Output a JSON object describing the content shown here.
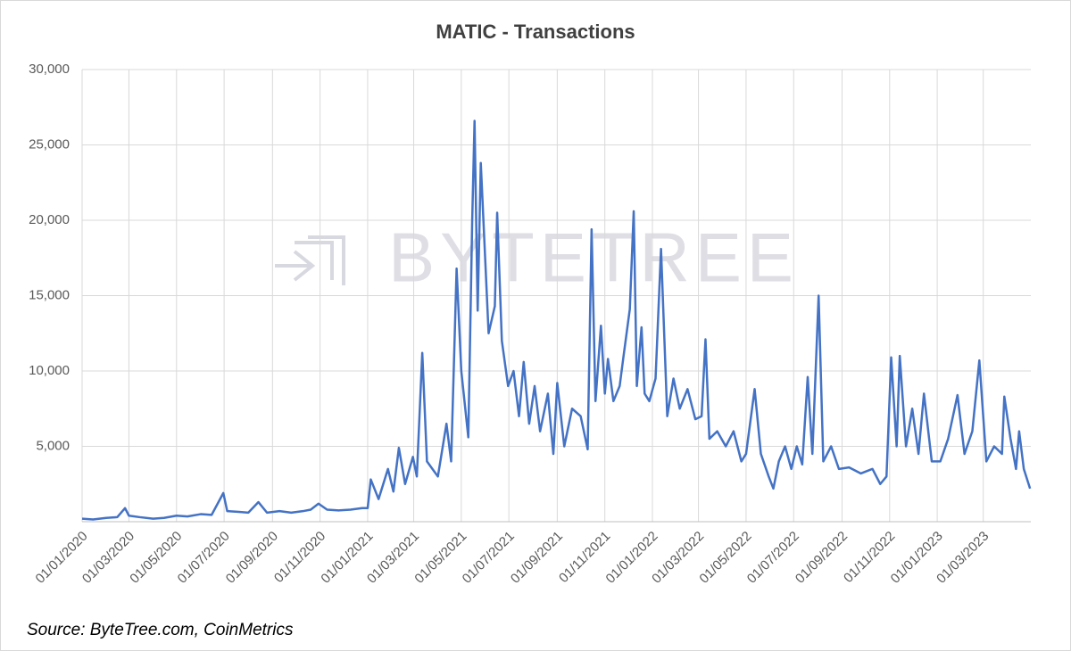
{
  "chart_data": {
    "type": "line",
    "title": "MATIC - Transactions",
    "watermark": "BYTETREE",
    "source": "Source: ByteTree.com, CoinMetrics",
    "x": [
      "01/01/2020",
      "15/01/2020",
      "01/02/2020",
      "15/02/2020",
      "25/02/2020",
      "01/03/2020",
      "15/03/2020",
      "01/04/2020",
      "15/04/2020",
      "01/05/2020",
      "15/05/2020",
      "01/06/2020",
      "15/06/2020",
      "30/06/2020",
      "05/07/2020",
      "20/07/2020",
      "01/08/2020",
      "14/08/2020",
      "25/08/2020",
      "10/09/2020",
      "25/09/2020",
      "10/10/2020",
      "20/10/2020",
      "30/10/2020",
      "10/11/2020",
      "25/11/2020",
      "10/12/2020",
      "25/12/2020",
      "01/01/2021",
      "05/01/2021",
      "15/01/2021",
      "27/01/2021",
      "03/02/2021",
      "10/02/2021",
      "18/02/2021",
      "28/02/2021",
      "05/03/2021",
      "12/03/2021",
      "18/03/2021",
      "25/03/2021",
      "01/04/2021",
      "12/04/2021",
      "18/04/2021",
      "25/04/2021",
      "01/05/2021",
      "10/05/2021",
      "15/05/2021",
      "18/05/2021",
      "22/05/2021",
      "26/05/2021",
      "05/06/2021",
      "13/06/2021",
      "16/06/2021",
      "22/06/2021",
      "30/06/2021",
      "07/07/2021",
      "14/07/2021",
      "20/07/2021",
      "27/07/2021",
      "03/08/2021",
      "10/08/2021",
      "20/08/2021",
      "27/08/2021",
      "01/09/2021",
      "10/09/2021",
      "20/09/2021",
      "01/10/2021",
      "10/10/2021",
      "15/10/2021",
      "20/10/2021",
      "27/10/2021",
      "01/11/2021",
      "05/11/2021",
      "12/11/2021",
      "20/11/2021",
      "25/11/2021",
      "03/12/2021",
      "08/12/2021",
      "12/12/2021",
      "18/12/2021",
      "22/12/2021",
      "28/12/2021",
      "05/01/2022",
      "12/01/2022",
      "20/01/2022",
      "28/01/2022",
      "05/02/2022",
      "15/02/2022",
      "25/02/2022",
      "05/03/2022",
      "10/03/2022",
      "15/03/2022",
      "25/03/2022",
      "05/04/2022",
      "15/04/2022",
      "25/04/2022",
      "01/05/2022",
      "12/05/2022",
      "20/05/2022",
      "30/05/2022",
      "05/06/2022",
      "12/06/2022",
      "20/06/2022",
      "28/06/2022",
      "05/07/2022",
      "12/07/2022",
      "19/07/2022",
      "25/07/2022",
      "02/08/2022",
      "08/08/2022",
      "18/08/2022",
      "28/08/2022",
      "10/09/2022",
      "25/09/2022",
      "10/10/2022",
      "20/10/2022",
      "28/10/2022",
      "03/11/2022",
      "10/11/2022",
      "14/11/2022",
      "22/11/2022",
      "30/11/2022",
      "08/12/2022",
      "15/12/2022",
      "25/12/2022",
      "05/01/2023",
      "15/01/2023",
      "27/01/2023",
      "05/02/2023",
      "15/02/2023",
      "24/02/2023",
      "05/03/2023",
      "15/03/2023",
      "25/03/2023",
      "28/03/2023",
      "05/04/2023",
      "12/04/2023",
      "16/04/2023",
      "22/04/2023",
      "30/04/2023"
    ],
    "series": [
      {
        "name": "Transactions",
        "color": "#4472c4",
        "values": [
          200,
          150,
          250,
          300,
          900,
          400,
          300,
          200,
          250,
          400,
          350,
          500,
          450,
          1900,
          700,
          650,
          600,
          1300,
          600,
          700,
          600,
          700,
          800,
          1200,
          800,
          750,
          800,
          900,
          900,
          2800,
          1500,
          3500,
          2000,
          4900,
          2500,
          4300,
          3000,
          11200,
          4000,
          3500,
          3000,
          6500,
          4000,
          16800,
          10000,
          5600,
          20000,
          26600,
          14000,
          23800,
          12500,
          14300,
          20500,
          12000,
          9000,
          10000,
          7000,
          10600,
          6500,
          9000,
          6000,
          8500,
          4500,
          9200,
          5000,
          7500,
          7000,
          4800,
          19400,
          8000,
          13000,
          8500,
          10800,
          8000,
          9000,
          11000,
          14100,
          20600,
          9000,
          12900,
          8500,
          8000,
          9500,
          18100,
          7000,
          9500,
          7500,
          8800,
          6800,
          7000,
          12100,
          5500,
          6000,
          5000,
          6000,
          4000,
          4500,
          8800,
          4500,
          3000,
          2200,
          4000,
          5000,
          3500,
          5000,
          3800,
          9600,
          4500,
          15000,
          4000,
          5000,
          3500,
          3600,
          3200,
          3500,
          2500,
          3000,
          10900,
          5000,
          11000,
          5000,
          7500,
          4500,
          8500,
          4000,
          4000,
          5500,
          8400,
          4500,
          6000,
          10700,
          4000,
          5000,
          4500,
          8300,
          5500,
          3500,
          6000,
          3500,
          2200
        ]
      }
    ],
    "xlim": [
      "01/01/2020",
      "01/05/2023"
    ],
    "xticks": [
      "01/01/2020",
      "01/03/2020",
      "01/05/2020",
      "01/07/2020",
      "01/09/2020",
      "01/11/2020",
      "01/01/2021",
      "01/03/2021",
      "01/05/2021",
      "01/07/2021",
      "01/09/2021",
      "01/11/2021",
      "01/01/2022",
      "01/03/2022",
      "01/05/2022",
      "01/07/2022",
      "01/09/2022",
      "01/11/2022",
      "01/01/2023",
      "01/03/2023"
    ],
    "ylim": [
      0,
      30000
    ],
    "yticks": [
      {
        "value": 5000,
        "label": "5,000"
      },
      {
        "value": 10000,
        "label": "10,000"
      },
      {
        "value": 15000,
        "label": "15,000"
      },
      {
        "value": 20000,
        "label": "20,000"
      },
      {
        "value": 25000,
        "label": "25,000"
      },
      {
        "value": 30000,
        "label": "30,000"
      }
    ],
    "grid": true
  }
}
